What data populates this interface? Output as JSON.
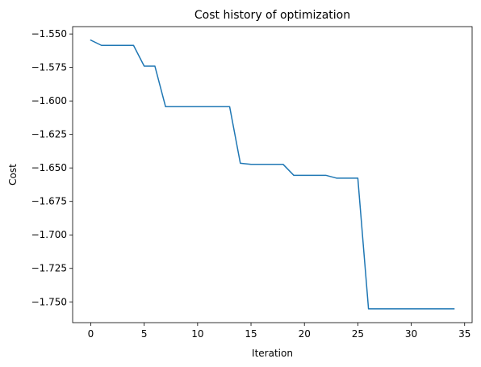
{
  "chart_data": {
    "type": "line",
    "title": "Cost history of optimization",
    "xlabel": "Iteration",
    "ylabel": "Cost",
    "xlim": [
      -1.7,
      35.7
    ],
    "ylim": [
      -1.7655,
      -1.5445
    ],
    "xticks": [
      0,
      5,
      10,
      15,
      20,
      25,
      30,
      35
    ],
    "xtick_labels": [
      "0",
      "5",
      "10",
      "15",
      "20",
      "25",
      "30",
      "35"
    ],
    "yticks": [
      -1.55,
      -1.575,
      -1.6,
      -1.625,
      -1.65,
      -1.675,
      -1.7,
      -1.725,
      -1.75
    ],
    "ytick_labels": [
      "−1.550",
      "−1.575",
      "−1.600",
      "−1.625",
      "−1.650",
      "−1.675",
      "−1.700",
      "−1.725",
      "−1.750"
    ],
    "grid": false,
    "series": [
      {
        "color": "#1f77b4",
        "x": [
          0,
          1,
          2,
          3,
          4,
          5,
          6,
          7,
          8,
          9,
          10,
          11,
          12,
          13,
          14,
          15,
          16,
          17,
          18,
          19,
          20,
          21,
          22,
          23,
          24,
          25,
          26,
          27,
          28,
          29,
          30,
          31,
          32,
          33,
          34
        ],
        "values": [
          -1.5546,
          -1.5585,
          -1.5585,
          -1.5585,
          -1.5585,
          -1.574,
          -1.574,
          -1.6043,
          -1.6043,
          -1.6043,
          -1.6043,
          -1.6043,
          -1.6043,
          -1.6043,
          -1.6465,
          -1.6473,
          -1.6473,
          -1.6473,
          -1.6473,
          -1.6555,
          -1.6555,
          -1.6555,
          -1.6555,
          -1.6576,
          -1.6576,
          -1.6576,
          -1.7552,
          -1.7552,
          -1.7552,
          -1.7552,
          -1.7552,
          -1.7552,
          -1.7552,
          -1.7552,
          -1.7552
        ]
      }
    ]
  }
}
